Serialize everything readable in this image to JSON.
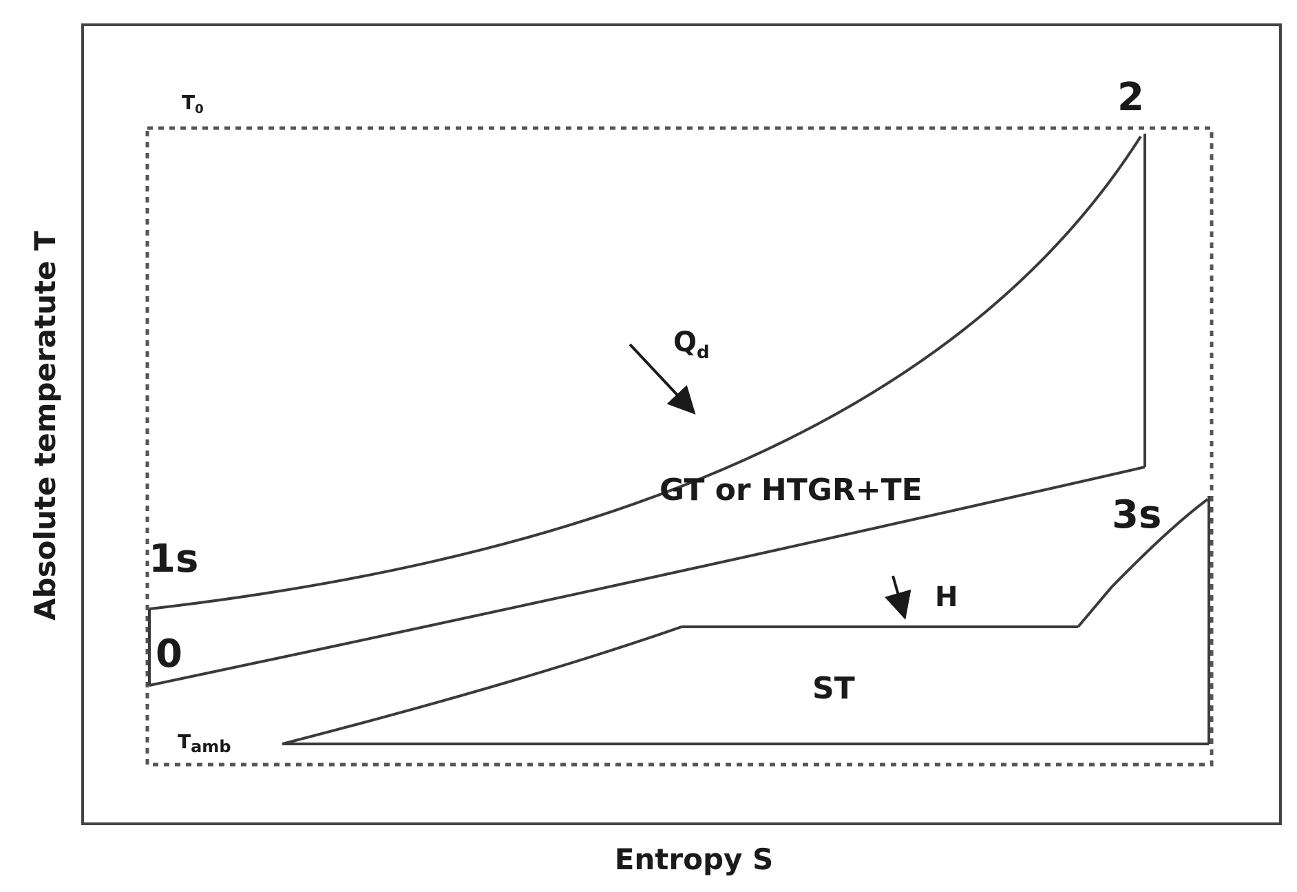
{
  "axes": {
    "x_label": "Entropy S",
    "y_label": "Absolute temperatute T"
  },
  "points": {
    "p0": "0",
    "p1s": "1s",
    "p2": "2",
    "p3s": "3s"
  },
  "regions": {
    "gt": "GT or HTGR+TE",
    "st": "ST"
  },
  "annotations": {
    "qd_main": "Q",
    "qd_sub": "d",
    "h": "H",
    "t0_main": "T",
    "t0_sub": "0",
    "tamb_main": "T",
    "tamb_sub": "amb"
  },
  "colors": {
    "line": "#3a3a3a",
    "dashed": "#555555",
    "frame": "#444444"
  }
}
